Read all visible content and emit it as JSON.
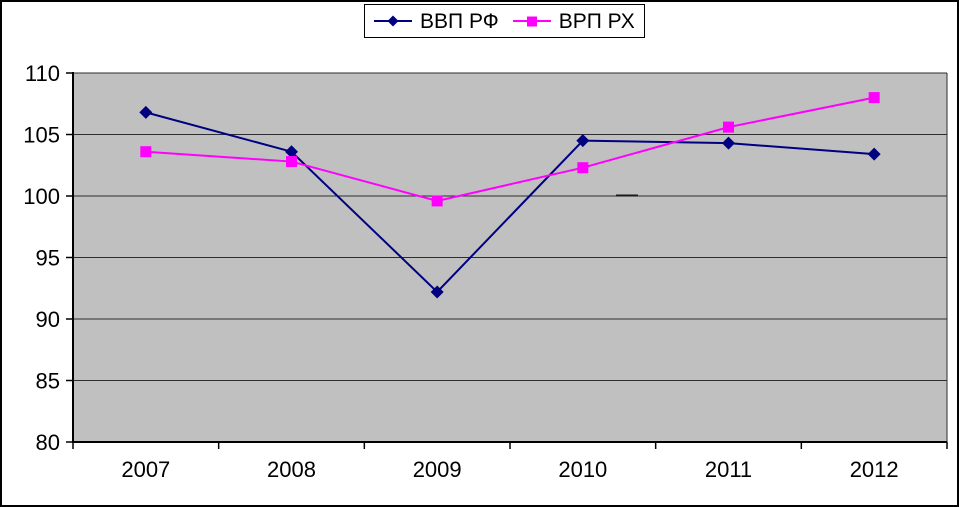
{
  "chart_data": {
    "type": "line",
    "title": "",
    "xlabel": "",
    "ylabel": "",
    "x_categories": [
      "2007",
      "2008",
      "2009",
      "2010",
      "2011",
      "2012"
    ],
    "series": [
      {
        "name": "ВВП РФ",
        "color": "#000080",
        "marker": "diamond",
        "values": [
          106.8,
          103.6,
          92.2,
          104.5,
          104.3,
          103.4
        ]
      },
      {
        "name": "ВРП РХ",
        "color": "#FF00FF",
        "marker": "square",
        "values": [
          103.6,
          102.8,
          99.6,
          102.3,
          105.6,
          108.0
        ]
      }
    ],
    "ylim": [
      80,
      110
    ],
    "yticks": [
      80,
      85,
      90,
      95,
      100,
      105,
      110
    ],
    "grid": true,
    "legend_position": "top",
    "plot_background": "#C0C0C0",
    "gridline_color": "#2E2E2E",
    "axis_color": "#000000",
    "text_color": "#000000"
  }
}
